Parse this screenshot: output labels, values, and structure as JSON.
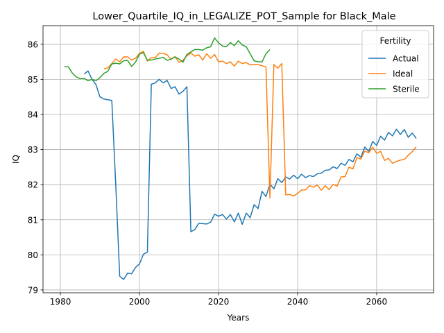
{
  "chart_data": {
    "type": "line",
    "title": "Lower_Quartile_IQ_in_LEGALIZE_POT_Sample for Black_Male",
    "xlabel": "Years",
    "ylabel": "IQ",
    "xlim": [
      1975.6,
      2074.4
    ],
    "ylim": [
      78.92,
      86.53
    ],
    "grid": true,
    "x_ticks": [
      1980,
      2000,
      2020,
      2040,
      2060
    ],
    "x_tick_labels": [
      "1980",
      "2000",
      "2020",
      "2040",
      "2060"
    ],
    "y_ticks": [
      79,
      80,
      81,
      82,
      83,
      84,
      85,
      86
    ],
    "y_tick_labels": [
      "79",
      "80",
      "81",
      "82",
      "83",
      "84",
      "85",
      "86"
    ],
    "legend": {
      "title": "Fertility",
      "location": "top-right",
      "entries": [
        "Actual",
        "Ideal",
        "Sterile"
      ]
    },
    "series": [
      {
        "name": "Actual",
        "color": "#1f77b4",
        "x": [
          1986,
          1987,
          1988,
          1989,
          1990,
          1991,
          1992,
          1993,
          1994,
          1995,
          1996,
          1997,
          1998,
          1999,
          2000,
          2001,
          2002,
          2003,
          2004,
          2005,
          2006,
          2007,
          2008,
          2009,
          2010,
          2011,
          2012,
          2013,
          2014,
          2015,
          2016,
          2017,
          2018,
          2019,
          2020,
          2021,
          2022,
          2023,
          2024,
          2025,
          2026,
          2027,
          2028,
          2029,
          2030,
          2031,
          2032,
          2033,
          2034,
          2035,
          2036,
          2037,
          2038,
          2039,
          2040,
          2041,
          2042,
          2043,
          2044,
          2045,
          2046,
          2047,
          2048,
          2049,
          2050,
          2051,
          2052,
          2053,
          2054,
          2055,
          2056,
          2057,
          2058,
          2059,
          2060,
          2061,
          2062,
          2063,
          2064,
          2065,
          2066,
          2067,
          2068,
          2069,
          2070
        ],
        "values": [
          85.15,
          85.24,
          85.0,
          84.85,
          84.5,
          84.44,
          84.42,
          84.4,
          82.0,
          79.39,
          79.3,
          79.48,
          79.46,
          79.64,
          79.74,
          80.02,
          80.08,
          84.86,
          84.9,
          85.0,
          84.9,
          84.97,
          84.74,
          84.79,
          84.58,
          84.66,
          84.79,
          80.66,
          80.72,
          80.9,
          80.89,
          80.88,
          80.93,
          81.16,
          81.1,
          81.15,
          81.02,
          81.15,
          80.94,
          81.19,
          80.87,
          81.19,
          81.06,
          81.43,
          81.32,
          81.81,
          81.66,
          82.02,
          81.88,
          82.17,
          82.06,
          82.22,
          82.16,
          82.27,
          82.17,
          82.3,
          82.2,
          82.26,
          82.23,
          82.31,
          82.33,
          82.41,
          82.42,
          82.51,
          82.46,
          82.61,
          82.55,
          82.72,
          82.65,
          82.88,
          82.78,
          83.07,
          82.95,
          83.23,
          83.12,
          83.38,
          83.27,
          83.49,
          83.39,
          83.58,
          83.43,
          83.57,
          83.35,
          83.47,
          83.32
        ]
      },
      {
        "name": "Ideal",
        "color": "#ff7f0e",
        "x": [
          1991,
          1992,
          1993,
          1994,
          1995,
          1996,
          1997,
          1998,
          1999,
          2000,
          2001,
          2002,
          2003,
          2004,
          2005,
          2006,
          2007,
          2008,
          2009,
          2010,
          2011,
          2012,
          2013,
          2014,
          2015,
          2016,
          2017,
          2018,
          2019,
          2020,
          2021,
          2022,
          2023,
          2024,
          2025,
          2026,
          2027,
          2028,
          2029,
          2030,
          2031,
          2032,
          2033,
          2034,
          2035,
          2036,
          2037,
          2038,
          2039,
          2040,
          2041,
          2042,
          2043,
          2044,
          2045,
          2046,
          2047,
          2048,
          2049,
          2050,
          2051,
          2052,
          2053,
          2054,
          2055,
          2056,
          2057,
          2058,
          2059,
          2060,
          2061,
          2062,
          2063,
          2064,
          2065,
          2066,
          2067,
          2068,
          2069,
          2070
        ],
        "values": [
          85.3,
          85.33,
          85.45,
          85.58,
          85.5,
          85.64,
          85.64,
          85.55,
          85.6,
          85.74,
          85.8,
          85.52,
          85.62,
          85.62,
          85.75,
          85.74,
          85.7,
          85.57,
          85.65,
          85.48,
          85.55,
          85.67,
          85.75,
          85.66,
          85.7,
          85.55,
          85.73,
          85.6,
          85.71,
          85.5,
          85.52,
          85.45,
          85.5,
          85.38,
          85.52,
          85.45,
          85.48,
          85.41,
          85.42,
          85.42,
          85.39,
          85.35,
          81.62,
          85.42,
          85.32,
          85.45,
          81.71,
          81.72,
          81.68,
          81.75,
          81.85,
          81.85,
          81.97,
          81.93,
          81.99,
          81.84,
          81.97,
          81.86,
          82.01,
          81.96,
          82.22,
          82.23,
          82.5,
          82.45,
          82.77,
          82.73,
          82.96,
          82.91,
          83.07,
          82.89,
          82.95,
          82.69,
          82.75,
          82.61,
          82.66,
          82.7,
          82.72,
          82.84,
          82.94,
          83.08
        ]
      },
      {
        "name": "Sterile",
        "color": "#2ca02c",
        "x": [
          1981,
          1982,
          1983,
          1984,
          1985,
          1986,
          1987,
          1988,
          1989,
          1990,
          1991,
          1992,
          1993,
          1994,
          1995,
          1996,
          1997,
          1998,
          1999,
          2000,
          2001,
          2002,
          2003,
          2004,
          2005,
          2006,
          2007,
          2008,
          2009,
          2010,
          2011,
          2012,
          2013,
          2014,
          2015,
          2016,
          2017,
          2018,
          2019,
          2020,
          2021,
          2022,
          2023,
          2024,
          2025,
          2026,
          2027,
          2028,
          2029,
          2030,
          2031,
          2032,
          2033
        ],
        "values": [
          85.36,
          85.36,
          85.18,
          85.07,
          85.02,
          85.03,
          84.96,
          85.0,
          84.96,
          85.05,
          85.17,
          85.23,
          85.44,
          85.46,
          85.44,
          85.53,
          85.54,
          85.37,
          85.49,
          85.72,
          85.76,
          85.55,
          85.55,
          85.58,
          85.6,
          85.63,
          85.54,
          85.58,
          85.64,
          85.58,
          85.49,
          85.71,
          85.78,
          85.85,
          85.85,
          85.83,
          85.9,
          85.93,
          86.18,
          86.04,
          85.95,
          85.93,
          86.05,
          85.96,
          86.1,
          85.98,
          85.93,
          85.73,
          85.53,
          85.5,
          85.5,
          85.73,
          85.85
        ]
      }
    ]
  }
}
